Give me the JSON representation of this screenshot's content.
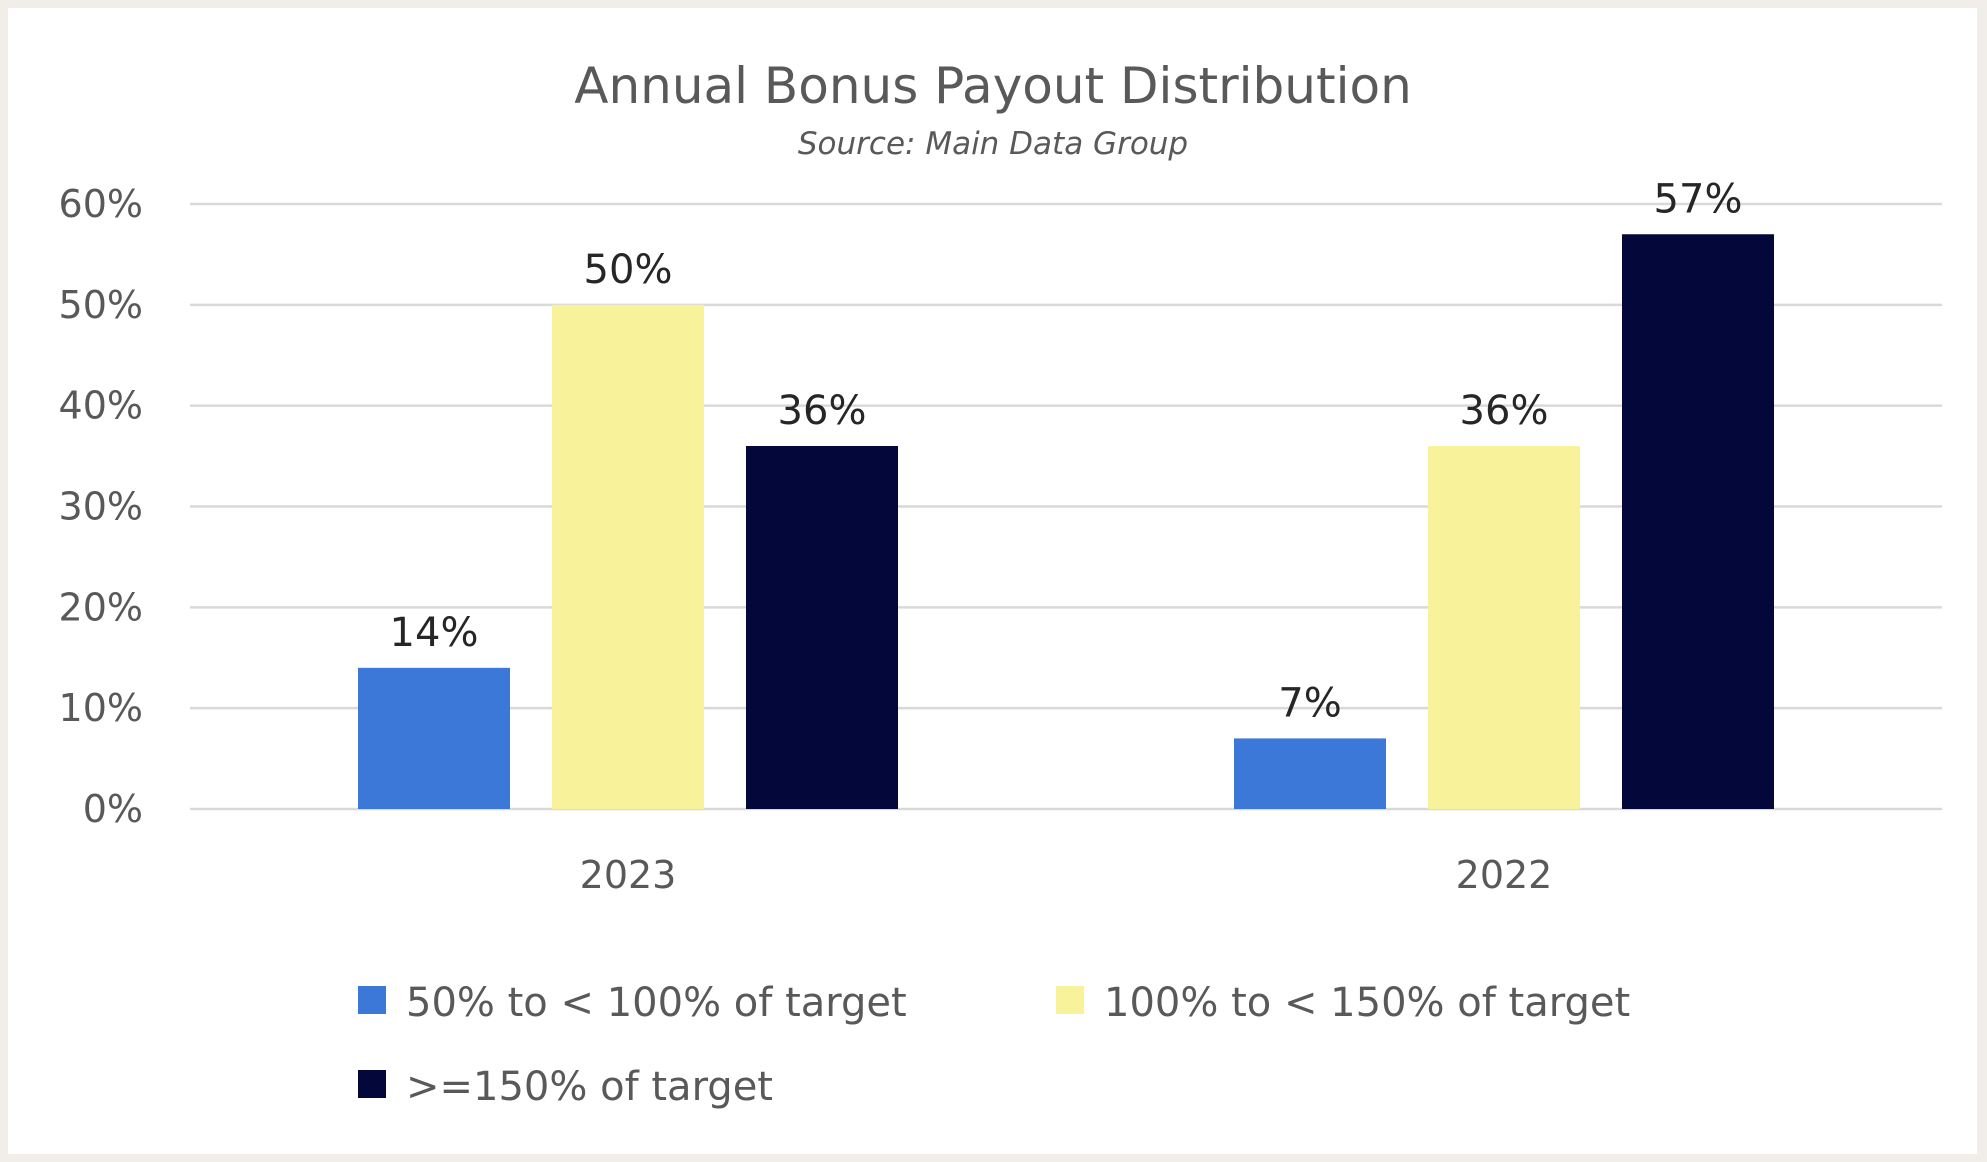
{
  "chart_data": {
    "type": "bar",
    "title": "Annual Bonus Payout Distribution",
    "subtitle": "Source: Main Data Group",
    "categories": [
      "2023",
      "2022"
    ],
    "series": [
      {
        "name": "50% to < 100% of target",
        "color": "#3c78d8",
        "values": [
          14,
          7
        ],
        "labels": [
          "14%",
          "7%"
        ]
      },
      {
        "name": "100% to < 150% of target",
        "color": "#f8f29b",
        "values": [
          50,
          36
        ],
        "labels": [
          "50%",
          "36%"
        ]
      },
      {
        "name": ">=150% of target",
        "color": "#03073a",
        "values": [
          36,
          57
        ],
        "labels": [
          "36%",
          "57%"
        ]
      }
    ],
    "yticks": [
      0,
      10,
      20,
      30,
      40,
      50,
      60
    ],
    "ytick_labels": [
      "0%",
      "10%",
      "20%",
      "30%",
      "40%",
      "50%",
      "60%"
    ],
    "ylim": [
      0,
      60
    ],
    "xlabel": "",
    "ylabel": "",
    "grid": true,
    "legend_position": "bottom"
  }
}
